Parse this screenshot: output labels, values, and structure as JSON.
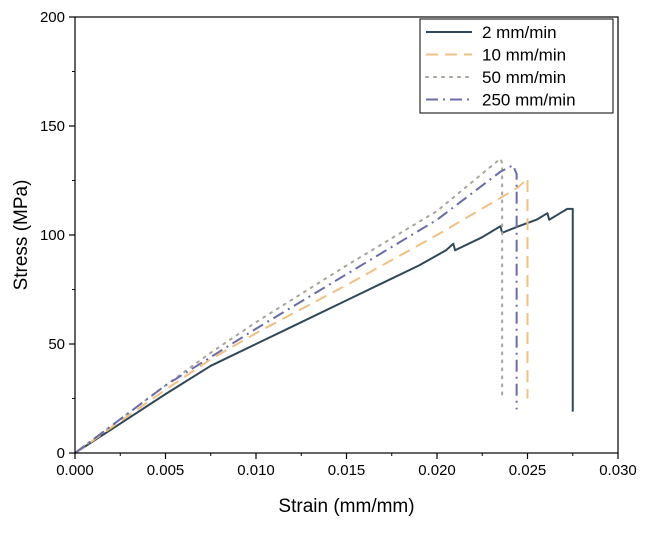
{
  "chart_data": {
    "type": "line",
    "xlabel": "Strain (mm/mm)",
    "ylabel": "Stress (MPa)",
    "xlim": [
      0,
      0.03
    ],
    "ylim": [
      0,
      200
    ],
    "x_ticks": [
      0.0,
      0.005,
      0.01,
      0.015,
      0.02,
      0.025,
      0.03
    ],
    "x_tick_labels": [
      "0.000",
      "0.005",
      "0.010",
      "0.015",
      "0.020",
      "0.025",
      "0.030"
    ],
    "y_ticks": [
      0,
      50,
      100,
      150,
      200
    ],
    "y_tick_labels": [
      "0",
      "50",
      "100",
      "150",
      "200"
    ],
    "legend_position": "top-right",
    "series": [
      {
        "name": "2 mm/min",
        "color": "#2f4858",
        "dash": "solid",
        "points": [
          [
            0,
            0
          ],
          [
            0.005,
            27
          ],
          [
            0.0075,
            40
          ],
          [
            0.01,
            50
          ],
          [
            0.012,
            58
          ],
          [
            0.015,
            70
          ],
          [
            0.017,
            78
          ],
          [
            0.019,
            86
          ],
          [
            0.0205,
            93
          ],
          [
            0.0209,
            96
          ],
          [
            0.021,
            93
          ],
          [
            0.0225,
            99
          ],
          [
            0.0235,
            104
          ],
          [
            0.0236,
            101
          ],
          [
            0.0245,
            104
          ],
          [
            0.0255,
            107
          ],
          [
            0.0261,
            110
          ],
          [
            0.0262,
            107
          ],
          [
            0.0268,
            110
          ],
          [
            0.0272,
            112
          ],
          [
            0.0275,
            112
          ],
          [
            0.0275,
            90
          ],
          [
            0.0275,
            19
          ]
        ]
      },
      {
        "name": "10 mm/min",
        "color": "#f0c080",
        "dash": "dashed",
        "points": [
          [
            0,
            0
          ],
          [
            0.005,
            29
          ],
          [
            0.0075,
            43
          ],
          [
            0.01,
            55
          ],
          [
            0.015,
            77
          ],
          [
            0.02,
            100
          ],
          [
            0.0235,
            117
          ],
          [
            0.0245,
            122
          ],
          [
            0.025,
            126
          ],
          [
            0.025,
            25
          ]
        ]
      },
      {
        "name": "50 mm/min",
        "color": "#a8a49a",
        "dash": "dotted",
        "points": [
          [
            0,
            0
          ],
          [
            0.005,
            31
          ],
          [
            0.0075,
            46
          ],
          [
            0.01,
            60
          ],
          [
            0.015,
            86
          ],
          [
            0.02,
            111
          ],
          [
            0.0235,
            135
          ],
          [
            0.0236,
            133
          ],
          [
            0.0236,
            25
          ]
        ]
      },
      {
        "name": "250 mm/min",
        "color": "#6a6ba8",
        "dash": "dashdot",
        "points": [
          [
            0,
            0
          ],
          [
            0.005,
            31
          ],
          [
            0.0075,
            44
          ],
          [
            0.01,
            57
          ],
          [
            0.015,
            82
          ],
          [
            0.02,
            107
          ],
          [
            0.0235,
            129
          ],
          [
            0.0242,
            132
          ],
          [
            0.0244,
            128
          ],
          [
            0.0244,
            20
          ]
        ]
      }
    ]
  }
}
